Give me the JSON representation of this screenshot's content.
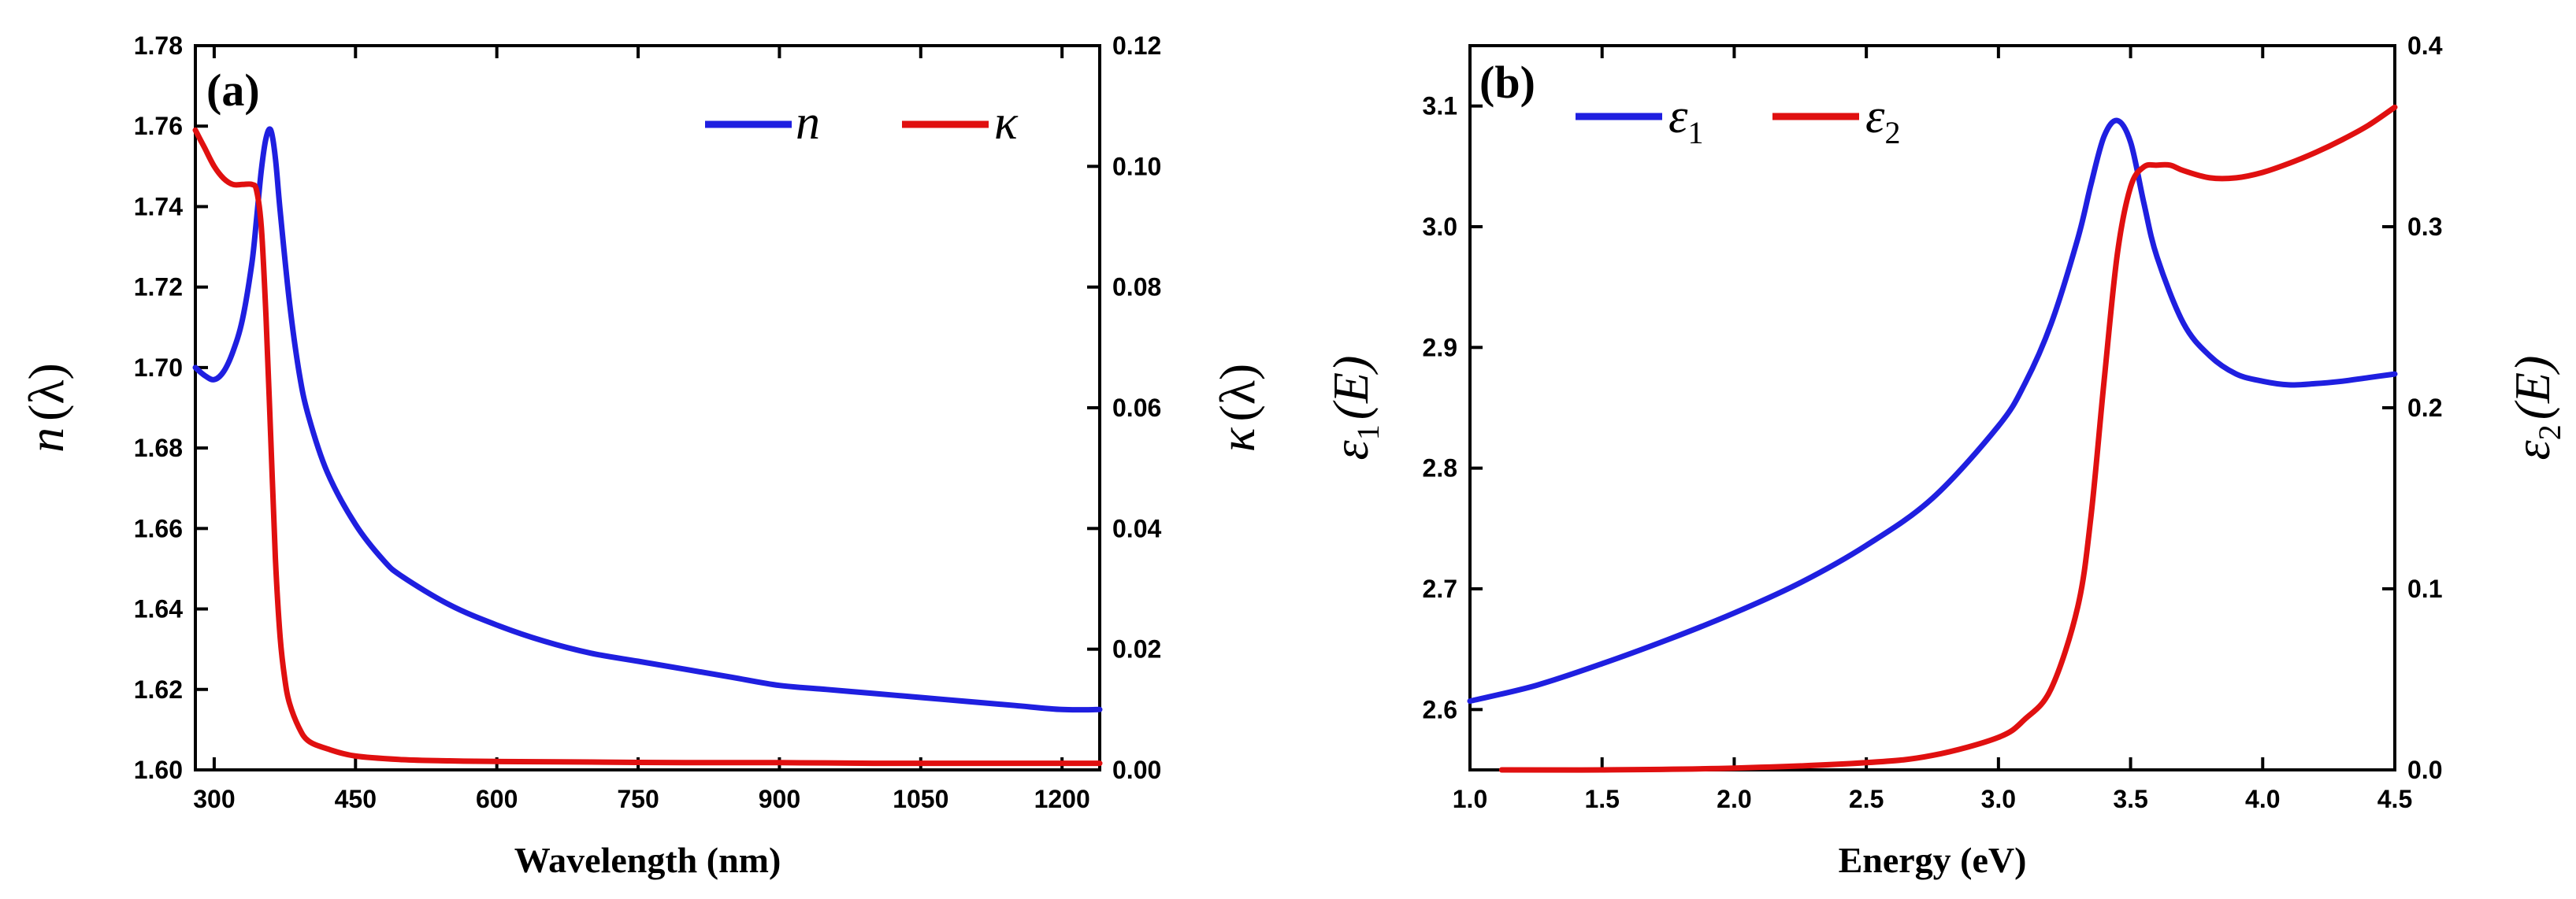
{
  "chart_data": [
    {
      "panel": "(a)",
      "type": "line",
      "xlabel": "Wavelength (nm)",
      "ylabel_left": "n (λ)",
      "ylabel_right": "κ (λ)",
      "xlim": [
        280,
        1240
      ],
      "ylim_left": [
        1.6,
        1.78
      ],
      "ylim_right": [
        0.0,
        0.12
      ],
      "x_ticks": [
        300,
        450,
        600,
        750,
        900,
        1050,
        1200
      ],
      "x_tick_labels": [
        "300",
        "450",
        "600",
        "750",
        "900",
        "1050",
        "1200"
      ],
      "y_left_ticks": [
        1.6,
        1.62,
        1.64,
        1.66,
        1.68,
        1.7,
        1.72,
        1.74,
        1.76,
        1.78
      ],
      "y_left_tick_labels": [
        "1.60",
        "1.62",
        "1.64",
        "1.66",
        "1.68",
        "1.70",
        "1.72",
        "1.74",
        "1.76",
        "1.78"
      ],
      "y_right_ticks": [
        0.0,
        0.02,
        0.04,
        0.06,
        0.08,
        0.1,
        0.12
      ],
      "y_right_tick_labels": [
        "0.00",
        "0.02",
        "0.04",
        "0.06",
        "0.08",
        "0.10",
        "0.12"
      ],
      "legend_position": "top-right",
      "series": [
        {
          "name": "n",
          "axis": "left",
          "color": "#1f1fe0",
          "x": [
            280,
            290,
            300,
            310,
            320,
            330,
            340,
            345,
            350,
            355,
            360,
            365,
            370,
            380,
            390,
            400,
            420,
            450,
            480,
            500,
            550,
            600,
            650,
            700,
            750,
            800,
            850,
            900,
            950,
            1000,
            1050,
            1100,
            1150,
            1200,
            1240
          ],
          "y": [
            1.7,
            1.698,
            1.697,
            1.699,
            1.704,
            1.712,
            1.726,
            1.737,
            1.749,
            1.757,
            1.759,
            1.752,
            1.739,
            1.716,
            1.699,
            1.688,
            1.674,
            1.661,
            1.652,
            1.648,
            1.641,
            1.636,
            1.632,
            1.629,
            1.627,
            1.625,
            1.623,
            1.621,
            1.62,
            1.619,
            1.618,
            1.617,
            1.616,
            1.615,
            1.615
          ]
        },
        {
          "name": "κ",
          "axis": "right",
          "color": "#e01010",
          "x": [
            280,
            290,
            300,
            310,
            320,
            330,
            340,
            345,
            350,
            355,
            360,
            365,
            370,
            375,
            380,
            390,
            400,
            420,
            450,
            500,
            550,
            600,
            700,
            800,
            900,
            1000,
            1100,
            1200,
            1240
          ],
          "y": [
            0.106,
            0.103,
            0.1,
            0.098,
            0.097,
            0.097,
            0.097,
            0.096,
            0.09,
            0.075,
            0.055,
            0.035,
            0.022,
            0.015,
            0.011,
            0.007,
            0.0048,
            0.0035,
            0.0023,
            0.0017,
            0.0015,
            0.0014,
            0.0013,
            0.0012,
            0.0012,
            0.0011,
            0.0011,
            0.0011,
            0.0011
          ]
        }
      ]
    },
    {
      "panel": "(b)",
      "type": "line",
      "xlabel": "Energy (eV)",
      "ylabel_left": "ε1(E)",
      "ylabel_right": "ε2(E)",
      "xlim": [
        1.0,
        4.5
      ],
      "ylim_left": [
        2.55,
        3.15
      ],
      "ylim_right": [
        0.0,
        0.4
      ],
      "x_ticks": [
        1.0,
        1.5,
        2.0,
        2.5,
        3.0,
        3.5,
        4.0,
        4.5
      ],
      "x_tick_labels": [
        "1.0",
        "1.5",
        "2.0",
        "2.5",
        "3.0",
        "3.5",
        "4.0",
        "4.5"
      ],
      "y_left_ticks": [
        2.6,
        2.7,
        2.8,
        2.9,
        3.0,
        3.1
      ],
      "y_left_tick_labels": [
        "2.6",
        "2.7",
        "2.8",
        "2.9",
        "3.0",
        "3.1"
      ],
      "y_right_ticks": [
        0.0,
        0.1,
        0.2,
        0.3,
        0.4
      ],
      "y_right_tick_labels": [
        "0.0",
        "0.1",
        "0.2",
        "0.3",
        "0.4"
      ],
      "legend_position": "top-left",
      "series": [
        {
          "name": "ε1",
          "axis": "left",
          "color": "#1f1fe0",
          "x": [
            1.0,
            1.25,
            1.5,
            1.75,
            2.0,
            2.25,
            2.5,
            2.75,
            3.0,
            3.1,
            3.2,
            3.3,
            3.35,
            3.4,
            3.45,
            3.5,
            3.55,
            3.6,
            3.7,
            3.8,
            3.9,
            4.0,
            4.1,
            4.2,
            4.3,
            4.4,
            4.5
          ],
          "y": [
            2.607,
            2.62,
            2.638,
            2.658,
            2.68,
            2.705,
            2.736,
            2.775,
            2.835,
            2.87,
            2.92,
            2.99,
            3.035,
            3.075,
            3.088,
            3.07,
            3.02,
            2.975,
            2.92,
            2.893,
            2.878,
            2.872,
            2.869,
            2.87,
            2.872,
            2.875,
            2.878
          ]
        },
        {
          "name": "ε2",
          "axis": "right",
          "color": "#e01010",
          "x": [
            1.12,
            1.5,
            2.0,
            2.5,
            2.75,
            3.0,
            3.1,
            3.2,
            3.3,
            3.35,
            3.4,
            3.45,
            3.5,
            3.55,
            3.6,
            3.65,
            3.7,
            3.8,
            3.9,
            4.0,
            4.1,
            4.2,
            4.3,
            4.4,
            4.5
          ],
          "y": [
            0.0,
            0.0,
            0.001,
            0.004,
            0.008,
            0.018,
            0.028,
            0.045,
            0.09,
            0.14,
            0.215,
            0.285,
            0.322,
            0.333,
            0.334,
            0.334,
            0.331,
            0.327,
            0.327,
            0.33,
            0.335,
            0.341,
            0.348,
            0.356,
            0.366
          ]
        }
      ]
    }
  ],
  "figure": {
    "panel_a_tag": "(a)",
    "panel_b_tag": "(b)",
    "a_xlabel": "Wavelength (nm)",
    "a_ylabel_left_sym": "n",
    "a_ylabel_left_arg": "(λ)",
    "a_ylabel_right_sym": "κ",
    "a_ylabel_right_arg": "(λ)",
    "a_legend_n": "n",
    "a_legend_k": "κ",
    "b_xlabel": "Energy (eV)",
    "b_ylabel_left_sym": "ε",
    "b_ylabel_left_sub": "1",
    "b_ylabel_left_arg": "(E)",
    "b_ylabel_right_sym": "ε",
    "b_ylabel_right_sub": "2",
    "b_ylabel_right_arg": "(E)",
    "b_legend_e1_sym": "ε",
    "b_legend_e1_sub": "1",
    "b_legend_e2_sym": "ε",
    "b_legend_e2_sub": "2"
  }
}
